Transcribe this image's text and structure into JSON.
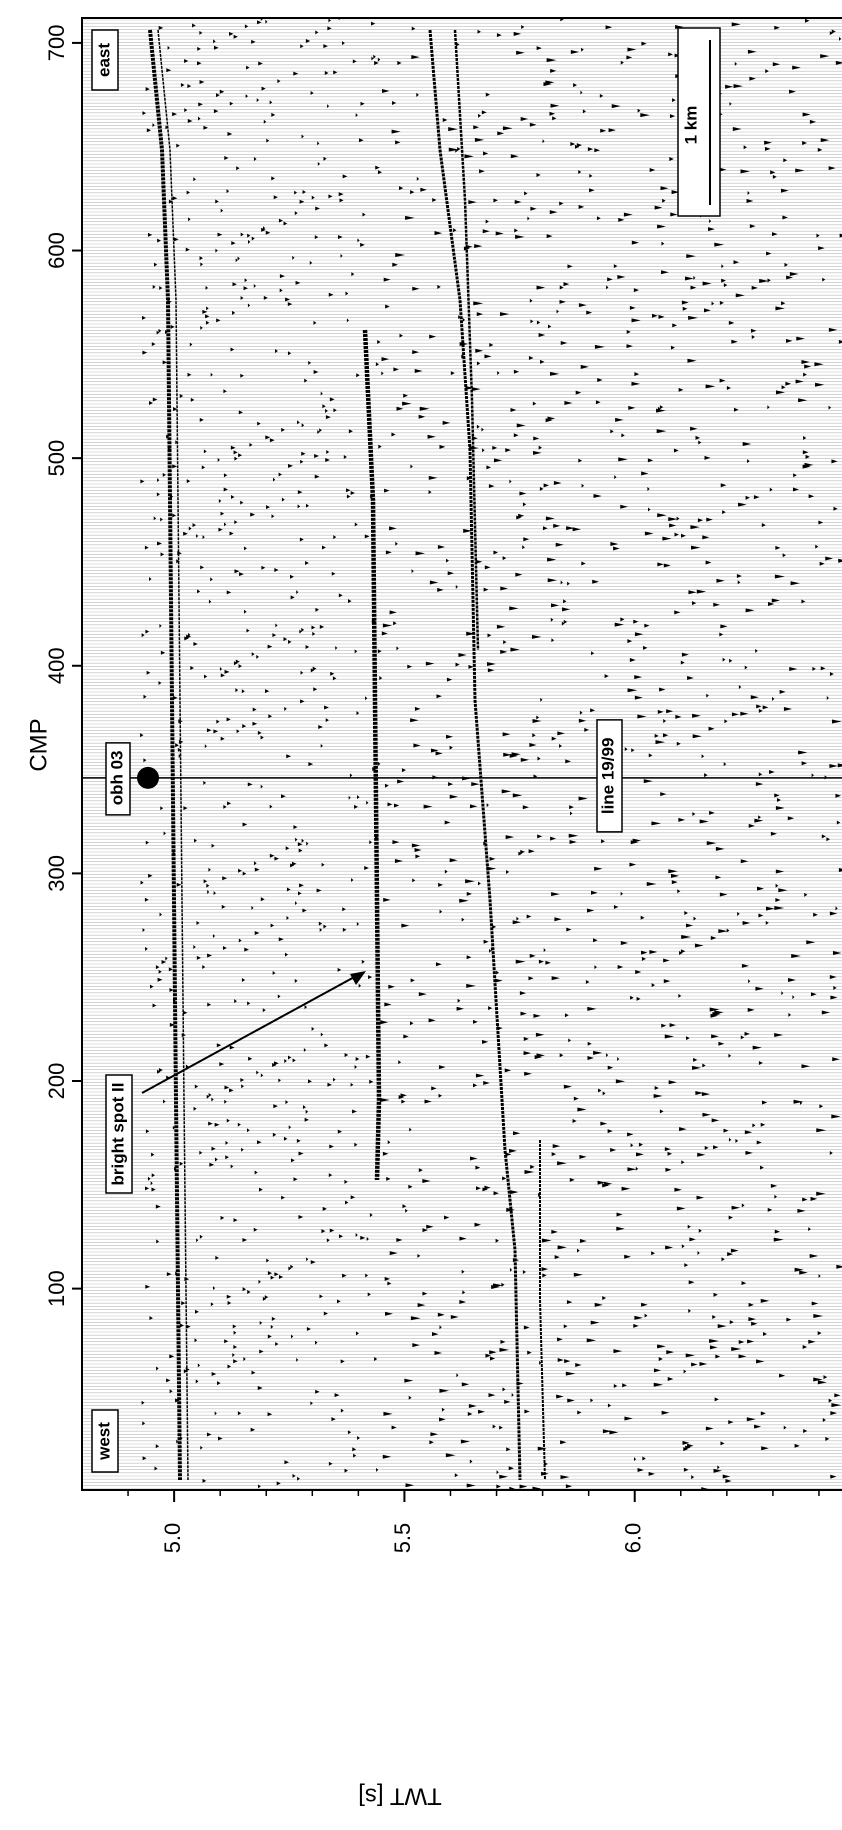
{
  "chart_data": {
    "type": "seismic",
    "x_label": "TWT [s]",
    "y_label": "CMP",
    "xlim": [
      4.8,
      6.45
    ],
    "xticks": [
      {
        "value": 5,
        "label": "5.0"
      },
      {
        "value": 5.5,
        "label": "5.5"
      },
      {
        "value": 6,
        "label": "6.0"
      }
    ],
    "xminorticks": [
      4.9,
      5.1,
      5.2,
      5.3,
      5.4,
      5.6,
      5.7,
      5.8,
      5.9,
      6.1,
      6.2,
      6.3,
      6.4
    ],
    "ylim": [
      3,
      712
    ],
    "yticks": [
      100,
      200,
      300,
      400,
      500,
      600,
      700
    ],
    "annotations": {
      "east": "east",
      "west": "west",
      "bright_spot": "bright spot II",
      "line": "line 19/99",
      "scale": "1 km"
    },
    "obh": {
      "label": "obh 03",
      "cmp": 346
    }
  }
}
